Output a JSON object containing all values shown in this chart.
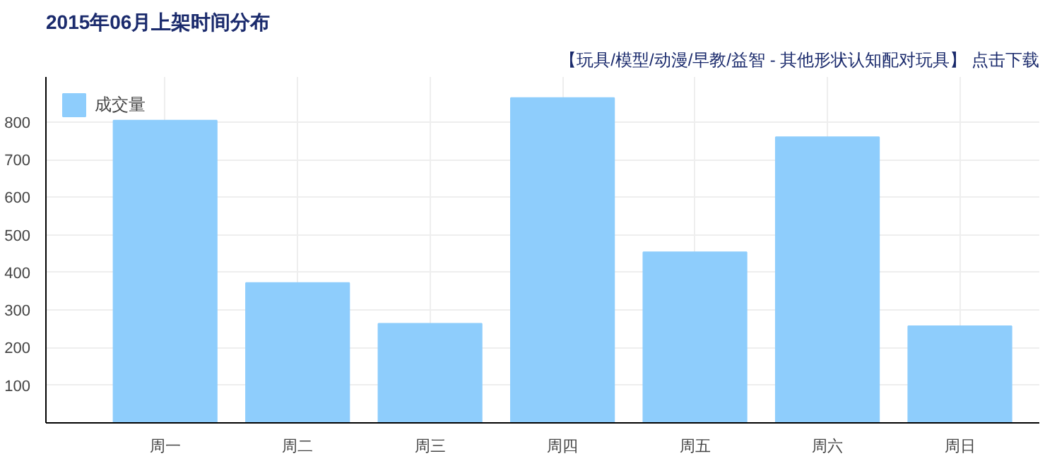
{
  "chart_data": {
    "type": "bar",
    "title": "2015年06月上架时间分布",
    "subtitle": "【玩具/模型/动漫/早教/益智 - 其他形状认知配对玩具】 点击下载",
    "categories": [
      "周一",
      "周二",
      "周三",
      "周四",
      "周五",
      "周六",
      "周日"
    ],
    "series": [
      {
        "name": "成交量",
        "color": "#8ecdfc",
        "values": [
          804,
          372,
          264,
          864,
          454,
          760,
          257
        ]
      }
    ],
    "ylim": [
      0,
      920
    ],
    "yticks": [
      100,
      200,
      300,
      400,
      500,
      600,
      700,
      800
    ],
    "grid": true,
    "legend": "top left"
  }
}
